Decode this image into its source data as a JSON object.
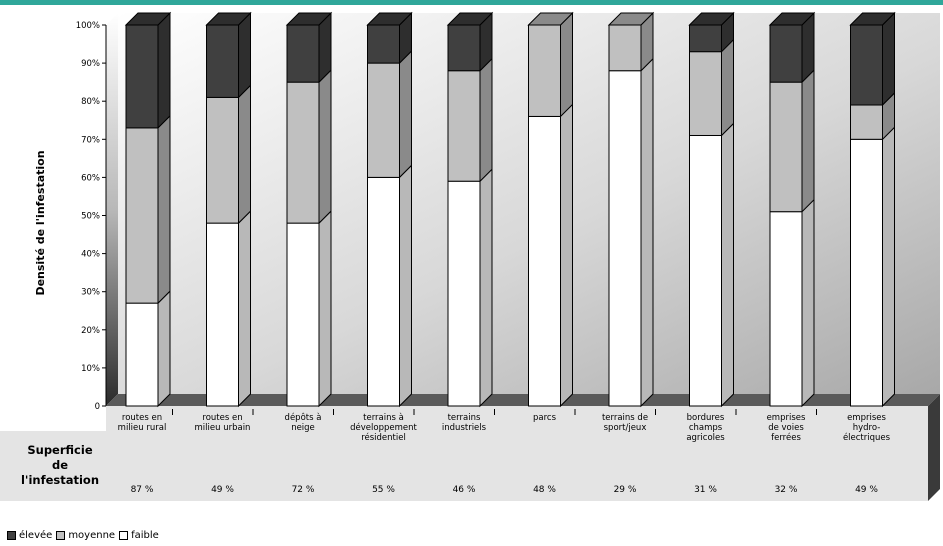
{
  "chart_data": {
    "type": "bar",
    "stacked": true,
    "percent": true,
    "ylabel": "Densité de l'infestation",
    "ylim": [
      0,
      100
    ],
    "yticks": [
      "0",
      "10%",
      "20%",
      "30%",
      "40%",
      "50%",
      "60%",
      "70%",
      "80%",
      "90%",
      "100%"
    ],
    "categories": [
      [
        "routes en",
        "milieu rural"
      ],
      [
        "routes en",
        "milieu urbain"
      ],
      [
        "dépôts à",
        "neige"
      ],
      [
        "terrains à",
        "développement",
        "résidentiel"
      ],
      [
        "terrains",
        "industriels"
      ],
      [
        "parcs"
      ],
      [
        "terrains de",
        "sport/jeux"
      ],
      [
        "bordures",
        "champs",
        "agricoles"
      ],
      [
        "emprises",
        "de voies",
        "ferrées"
      ],
      [
        "emprises",
        "hydro-",
        "électriques"
      ]
    ],
    "series": [
      {
        "name": "faible",
        "color": "#ffffff",
        "values": [
          27,
          48,
          48,
          60,
          59,
          76,
          88,
          71,
          51,
          70
        ]
      },
      {
        "name": "moyenne",
        "color": "#c0c0c0",
        "values": [
          46,
          33,
          37,
          30,
          29,
          24,
          12,
          22,
          34,
          9
        ]
      },
      {
        "name": "élevée",
        "color": "#404040",
        "values": [
          27,
          19,
          15,
          10,
          12,
          0,
          0,
          7,
          15,
          21
        ]
      }
    ],
    "table": {
      "row_label": [
        "Superficie",
        "de",
        "l'infestation"
      ],
      "values": [
        "87 %",
        "49 %",
        "72 %",
        "55 %",
        "46 %",
        "48 %",
        "29 %",
        "31 %",
        "32 %",
        "49 %"
      ]
    },
    "legend_position": "bottom-left",
    "legend": [
      "élevée",
      "moyenne",
      "faible"
    ]
  }
}
